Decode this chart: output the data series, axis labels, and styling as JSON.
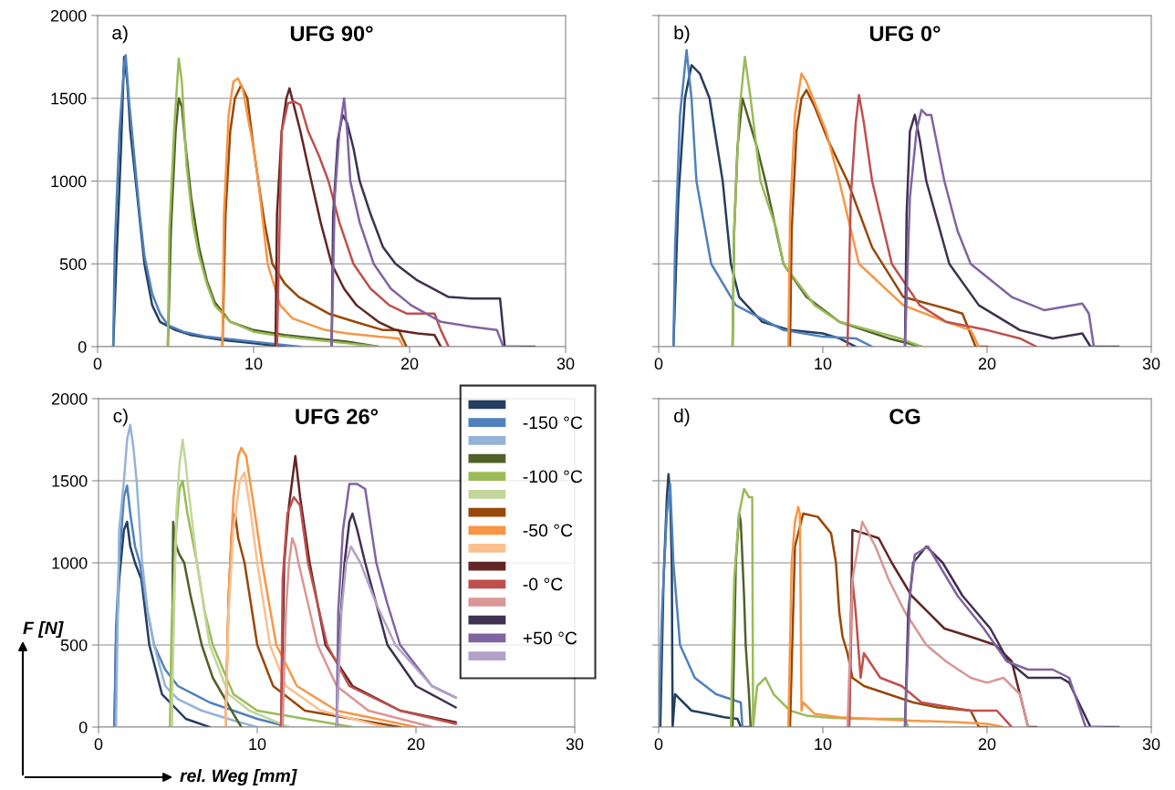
{
  "chart_data": [
    {
      "type": "line",
      "title": "UFG 90°",
      "annotations": [
        "a)"
      ],
      "xlim": [
        0,
        30
      ],
      "xticks": [
        0,
        10,
        20,
        30
      ],
      "ylim": [
        0,
        2000
      ],
      "yticks": [
        0,
        500,
        1000,
        1500,
        2000
      ],
      "grid": "y",
      "series": [
        {
          "color": "#243f60",
          "x": [
            1.0,
            1.2,
            1.5,
            1.7,
            1.9,
            2.1,
            2.5,
            3.0,
            3.5,
            4.0,
            5.0,
            6.0,
            8.0,
            10.0,
            12.0
          ],
          "values": [
            0,
            500,
            1200,
            1750,
            1600,
            1300,
            950,
            500,
            250,
            150,
            100,
            70,
            40,
            20,
            0
          ]
        },
        {
          "color": "#4f81bd",
          "x": [
            1.0,
            1.1,
            1.4,
            1.7,
            1.8,
            2.0,
            2.3,
            2.7,
            3.0,
            3.5,
            4.0,
            4.5,
            5.5,
            7,
            9,
            11,
            13
          ],
          "values": [
            0,
            600,
            1300,
            1700,
            1760,
            1500,
            1200,
            800,
            550,
            320,
            200,
            130,
            90,
            60,
            40,
            20,
            0
          ]
        },
        {
          "color": "#4f6228",
          "x": [
            4.5,
            4.7,
            5.0,
            5.2,
            5.4,
            5.6,
            6.0,
            6.5,
            7.0,
            7.5,
            8.5,
            10,
            12,
            14,
            16,
            18
          ],
          "values": [
            0,
            700,
            1300,
            1500,
            1450,
            1250,
            900,
            600,
            400,
            270,
            150,
            100,
            70,
            50,
            30,
            0
          ]
        },
        {
          "color": "#9bbb59",
          "x": [
            4.5,
            4.6,
            4.9,
            5.2,
            5.4,
            5.7,
            6.1,
            6.5,
            7.0,
            7.5,
            8.5,
            10,
            12,
            14,
            16,
            18
          ],
          "values": [
            0,
            700,
            1300,
            1740,
            1600,
            1100,
            750,
            550,
            380,
            250,
            150,
            90,
            60,
            40,
            20,
            0
          ]
        },
        {
          "color": "#984807",
          "x": [
            8.0,
            8.2,
            8.5,
            8.8,
            9.2,
            9.6,
            10.0,
            10.3,
            10.7,
            11.2,
            12.0,
            12.9,
            14.8,
            16.5,
            18.3,
            19.3,
            19.8
          ],
          "values": [
            0,
            800,
            1300,
            1500,
            1580,
            1500,
            1200,
            1000,
            750,
            500,
            380,
            300,
            200,
            150,
            100,
            100,
            0
          ]
        },
        {
          "color": "#f79646",
          "x": [
            8.0,
            8.1,
            8.4,
            8.7,
            9.0,
            9.3,
            9.7,
            10.0,
            10.3,
            10.9,
            11.7,
            12.5,
            14.6,
            16,
            18,
            19.3,
            19.6
          ],
          "values": [
            0,
            800,
            1400,
            1600,
            1620,
            1560,
            1350,
            1200,
            1000,
            500,
            250,
            170,
            100,
            80,
            60,
            50,
            0
          ]
        },
        {
          "color": "#632523",
          "x": [
            11.4,
            11.5,
            11.8,
            12.1,
            12.3,
            12.6,
            13.0,
            13.7,
            14.3,
            15.0,
            15.8,
            16.6,
            18,
            19.1,
            20.5,
            21.6,
            22.0
          ],
          "values": [
            0,
            800,
            1300,
            1500,
            1560,
            1450,
            1300,
            1000,
            750,
            500,
            350,
            250,
            150,
            100,
            80,
            70,
            0
          ]
        },
        {
          "color": "#c0504d",
          "x": [
            11.5,
            11.8,
            12.2,
            12.6,
            13.0,
            13.5,
            14.2,
            14.8,
            15.5,
            16.4,
            17.5,
            18.7,
            19.8,
            21.0,
            21.6,
            22.0,
            22.5
          ],
          "values": [
            0,
            1300,
            1470,
            1480,
            1460,
            1300,
            1150,
            1000,
            750,
            500,
            350,
            250,
            200,
            200,
            200,
            100,
            0
          ]
        },
        {
          "color": "#3f3151",
          "x": [
            15.0,
            15.1,
            15.4,
            15.7,
            16.0,
            16.4,
            16.8,
            17.5,
            18.3,
            19.1,
            20.5,
            22.5,
            24,
            25.8,
            26.1,
            28
          ],
          "values": [
            0,
            800,
            1250,
            1400,
            1350,
            1200,
            1000,
            800,
            600,
            500,
            400,
            300,
            290,
            290,
            0,
            0
          ]
        },
        {
          "color": "#8064a2",
          "x": [
            15.0,
            15.2,
            15.5,
            15.8,
            16.0,
            16.2,
            16.8,
            17.7,
            18.8,
            20.1,
            22,
            24,
            25.6,
            26.0,
            27
          ],
          "values": [
            0,
            900,
            1300,
            1500,
            1300,
            1000,
            750,
            500,
            350,
            250,
            150,
            120,
            100,
            0,
            0
          ]
        }
      ]
    },
    {
      "type": "line",
      "title": "UFG 0°",
      "annotations": [
        "b)"
      ],
      "xlim": [
        0,
        30
      ],
      "xticks": [
        0,
        10,
        20,
        30
      ],
      "ylim": [
        0,
        2000
      ],
      "yticks": [
        0,
        500,
        1000,
        1500,
        2000
      ],
      "grid": "y",
      "tick_labels": "x",
      "series": [
        {
          "color": "#243f60",
          "x": [
            0.9,
            1.2,
            1.6,
            2.0,
            2.5,
            3.1,
            3.9,
            4.4,
            4.9,
            6.3,
            8,
            10,
            11,
            12
          ],
          "values": [
            0,
            900,
            1500,
            1700,
            1650,
            1500,
            1000,
            500,
            300,
            150,
            100,
            80,
            50,
            0
          ]
        },
        {
          "color": "#4f81bd",
          "x": [
            0.9,
            1.0,
            1.3,
            1.7,
            2.0,
            2.3,
            3.2,
            4.7,
            7.6,
            10,
            12,
            13
          ],
          "values": [
            0,
            600,
            1400,
            1790,
            1500,
            1000,
            500,
            250,
            100,
            60,
            50,
            0
          ]
        },
        {
          "color": "#4f6228",
          "x": [
            4.5,
            4.6,
            4.8,
            5.1,
            5.4,
            6.0,
            6.5,
            7.6,
            9.0,
            11,
            14,
            16
          ],
          "values": [
            0,
            700,
            1200,
            1500,
            1400,
            1200,
            1000,
            500,
            300,
            150,
            50,
            0
          ]
        },
        {
          "color": "#9bbb59",
          "x": [
            4.5,
            4.6,
            4.9,
            5.25,
            5.6,
            6.2,
            7.2,
            7.6,
            9.5,
            11,
            14.7,
            16
          ],
          "values": [
            0,
            700,
            1400,
            1750,
            1500,
            1000,
            700,
            500,
            250,
            150,
            50,
            0
          ]
        },
        {
          "color": "#984807",
          "x": [
            8.0,
            8.1,
            8.4,
            8.7,
            9.0,
            9.5,
            10.3,
            11.5,
            13.0,
            14.9,
            17.5,
            18.5,
            19.3,
            20
          ],
          "values": [
            0,
            700,
            1300,
            1500,
            1550,
            1450,
            1250,
            1000,
            600,
            300,
            230,
            200,
            0,
            0
          ]
        },
        {
          "color": "#f79646",
          "x": [
            7.9,
            8.0,
            8.3,
            8.7,
            9.0,
            9.4,
            10.2,
            11.0,
            12.2,
            14.9,
            17.5,
            19.0,
            19.5
          ],
          "values": [
            0,
            800,
            1400,
            1650,
            1600,
            1500,
            1300,
            1000,
            500,
            250,
            150,
            100,
            0
          ]
        },
        {
          "color": "#c0504d",
          "x": [
            11.5,
            11.7,
            12.0,
            12.2,
            12.5,
            13.0,
            14.2,
            15.9,
            17.5,
            20,
            22,
            23
          ],
          "values": [
            0,
            900,
            1350,
            1520,
            1350,
            1000,
            500,
            250,
            150,
            100,
            50,
            0
          ]
        },
        {
          "color": "#3f3151",
          "x": [
            15.0,
            15.1,
            15.3,
            15.6,
            15.9,
            16.3,
            17.0,
            17.7,
            19.5,
            22,
            24,
            25.8,
            26.3,
            28
          ],
          "values": [
            0,
            800,
            1300,
            1400,
            1250,
            1000,
            750,
            500,
            250,
            100,
            50,
            80,
            0,
            0
          ]
        },
        {
          "color": "#8064a2",
          "x": [
            15.0,
            15.3,
            15.7,
            16.0,
            16.3,
            16.6,
            17.0,
            17.4,
            18.2,
            19.0,
            21.5,
            23.5,
            25.8,
            26.2,
            26.5
          ],
          "values": [
            0,
            900,
            1300,
            1430,
            1400,
            1400,
            1200,
            1000,
            700,
            500,
            300,
            220,
            260,
            200,
            0
          ]
        }
      ]
    },
    {
      "type": "line",
      "title": "UFG 26°",
      "annotations": [
        "c)"
      ],
      "xlabel": "rel. Weg [mm]",
      "ylabel": "F [N]",
      "xlim": [
        0,
        30
      ],
      "xticks": [
        0,
        10,
        20,
        30
      ],
      "ylim": [
        0,
        2000
      ],
      "yticks": [
        0,
        500,
        1000,
        1500,
        2000
      ],
      "grid": "y",
      "legend": "top right",
      "series": [
        {
          "color": "#243f60",
          "x": [
            1.0,
            1.1,
            1.3,
            1.6,
            1.8,
            2.0,
            2.3,
            2.7,
            3.2,
            4.0,
            5.5,
            7.0
          ],
          "values": [
            0,
            500,
            900,
            1200,
            1250,
            1100,
            1000,
            900,
            500,
            200,
            50,
            0
          ]
        },
        {
          "name": "-150 °C",
          "color": "#4f81bd",
          "x": [
            1.0,
            1.1,
            1.3,
            1.6,
            1.8,
            2.0,
            2.3,
            2.6,
            3.0,
            3.5,
            4.2,
            5.0,
            7.0,
            10.0,
            12.0
          ],
          "values": [
            0,
            600,
            1000,
            1400,
            1470,
            1300,
            1100,
            1000,
            750,
            500,
            350,
            250,
            150,
            50,
            0
          ]
        },
        {
          "color": "#95b3d7",
          "x": [
            1.1,
            1.3,
            1.6,
            1.8,
            2.0,
            2.2,
            2.4,
            2.75,
            3.1,
            3.5,
            4.2,
            5.0,
            6.5,
            8.5,
            10.0
          ],
          "values": [
            0,
            1200,
            1500,
            1750,
            1840,
            1700,
            1500,
            1000,
            700,
            500,
            250,
            170,
            100,
            40,
            0
          ]
        },
        {
          "color": "#4f6228",
          "x": [
            4.6,
            4.7,
            4.9,
            5.1,
            5.4,
            5.8,
            6.5,
            7.2,
            7.8,
            8.5,
            9.0
          ],
          "values": [
            0,
            1250,
            1100,
            1050,
            1000,
            800,
            500,
            300,
            200,
            80,
            0
          ]
        },
        {
          "name": "-100 °C",
          "color": "#9bbb59",
          "x": [
            4.5,
            4.6,
            4.9,
            5.1,
            5.3,
            5.6,
            6.2,
            6.7,
            7.2,
            8.5,
            10.0,
            13.0,
            16.0
          ],
          "values": [
            0,
            600,
            1200,
            1450,
            1500,
            1300,
            1000,
            700,
            500,
            200,
            100,
            50,
            0
          ]
        },
        {
          "color": "#c3d69b",
          "x": [
            4.6,
            4.9,
            5.1,
            5.3,
            5.5,
            5.6,
            6.2,
            7.0,
            8.2,
            9.5,
            12.0
          ],
          "values": [
            0,
            1300,
            1600,
            1750,
            1600,
            1500,
            1000,
            500,
            200,
            100,
            0
          ]
        },
        {
          "color": "#984807",
          "x": [
            8.0,
            8.2,
            8.4,
            8.6,
            8.8,
            9.2,
            10.0,
            11.0,
            13.0,
            16.0,
            19.0
          ],
          "values": [
            0,
            800,
            1200,
            1300,
            1150,
            1000,
            500,
            250,
            100,
            50,
            0
          ]
        },
        {
          "name": "-50 °C",
          "color": "#f79646",
          "x": [
            8.0,
            8.2,
            8.5,
            8.8,
            9.0,
            9.3,
            9.7,
            10.3,
            11.2,
            12.5,
            15.0,
            18.0,
            20.0
          ],
          "values": [
            0,
            800,
            1400,
            1650,
            1700,
            1650,
            1400,
            1000,
            500,
            250,
            100,
            40,
            0
          ]
        },
        {
          "color": "#fac090",
          "x": [
            8.0,
            8.2,
            8.5,
            8.9,
            9.2,
            9.6,
            10.0,
            10.8,
            11.8,
            14.0,
            18.0
          ],
          "values": [
            0,
            700,
            1200,
            1500,
            1550,
            1300,
            1000,
            500,
            250,
            100,
            0
          ]
        },
        {
          "color": "#632523",
          "x": [
            11.5,
            11.7,
            12.0,
            12.2,
            12.4,
            12.7,
            13.3,
            14.3,
            16.0,
            19.0,
            22.5
          ],
          "values": [
            0,
            1000,
            1350,
            1500,
            1650,
            1400,
            1000,
            500,
            250,
            100,
            30
          ]
        },
        {
          "name": "-0 °C",
          "color": "#c0504d",
          "x": [
            11.5,
            11.6,
            11.9,
            12.3,
            12.7,
            13.2,
            13.8,
            14.4,
            15.8,
            19.0,
            22.5
          ],
          "values": [
            0,
            900,
            1300,
            1400,
            1350,
            1000,
            750,
            500,
            250,
            100,
            20
          ]
        },
        {
          "color": "#d99694",
          "x": [
            11.6,
            11.8,
            12.0,
            12.2,
            12.4,
            12.6,
            13.2,
            13.8,
            15.0,
            17.0,
            21.0
          ],
          "values": [
            0,
            700,
            1000,
            1150,
            1100,
            1000,
            750,
            500,
            250,
            100,
            0
          ]
        },
        {
          "color": "#3f3151",
          "x": [
            15.0,
            15.2,
            15.5,
            15.8,
            16.0,
            16.3,
            16.8,
            17.5,
            18.2,
            20.0,
            22.5
          ],
          "values": [
            0,
            600,
            1000,
            1250,
            1300,
            1200,
            1000,
            750,
            500,
            250,
            120
          ]
        },
        {
          "name": "+50 °C",
          "color": "#8064a2",
          "x": [
            15.0,
            15.1,
            15.4,
            15.8,
            16.3,
            16.8,
            17.5,
            18.2,
            19.0,
            21.0,
            22.5
          ],
          "values": [
            0,
            700,
            1200,
            1480,
            1480,
            1450,
            1000,
            750,
            500,
            250,
            180
          ]
        },
        {
          "color": "#b3a2c7",
          "x": [
            15.0,
            15.3,
            15.6,
            15.9,
            16.2,
            16.5,
            17.5,
            18.7,
            21.0,
            22.5
          ],
          "values": [
            0,
            700,
            1000,
            1100,
            1050,
            1000,
            750,
            500,
            250,
            180
          ]
        }
      ]
    },
    {
      "type": "line",
      "title": "CG",
      "annotations": [
        "d)"
      ],
      "xlim": [
        0,
        30
      ],
      "xticks": [
        0,
        10,
        20,
        30
      ],
      "ylim": [
        0,
        2000
      ],
      "yticks": [
        0,
        500,
        1000,
        1500,
        2000
      ],
      "grid": "y",
      "tick_labels": "x",
      "series": [
        {
          "color": "#243f60",
          "x": [
            0.1,
            0.3,
            0.5,
            0.6,
            0.7,
            0.8,
            0.85,
            1.0,
            1.5,
            2,
            3,
            4,
            4.8,
            5.0,
            5.5
          ],
          "values": [
            0,
            900,
            1400,
            1540,
            1400,
            1000,
            0,
            200,
            150,
            100,
            80,
            60,
            50,
            0,
            0
          ]
        },
        {
          "color": "#4f81bd",
          "x": [
            0.0,
            0.2,
            0.5,
            0.7,
            0.9,
            1.3,
            2.2,
            3.5,
            5.0,
            5.1
          ],
          "values": [
            0,
            700,
            1300,
            1480,
            1000,
            500,
            300,
            200,
            150,
            0
          ]
        },
        {
          "color": "#4f6228",
          "x": [
            4.5,
            4.7,
            4.9,
            5.0,
            5.2,
            5.3,
            5.5,
            5.6
          ],
          "values": [
            0,
            1000,
            1300,
            1250,
            800,
            500,
            200,
            0
          ]
        },
        {
          "color": "#9bbb59",
          "x": [
            4.4,
            4.6,
            4.9,
            5.2,
            5.5,
            5.7,
            5.75,
            6.0,
            6.5,
            7,
            8,
            9,
            10,
            12,
            14,
            15.0,
            15.2
          ],
          "values": [
            0,
            900,
            1300,
            1450,
            1400,
            1400,
            0,
            250,
            300,
            200,
            100,
            70,
            60,
            50,
            50,
            50,
            0
          ]
        },
        {
          "color": "#984807",
          "x": [
            8.0,
            8.3,
            8.8,
            9.7,
            10.5,
            10.8,
            11.0,
            11.2,
            11.5,
            11.8,
            12.5,
            14,
            15.5,
            17,
            19.0,
            19.5,
            20
          ],
          "values": [
            0,
            1100,
            1300,
            1280,
            1180,
            1000,
            700,
            550,
            450,
            300,
            250,
            200,
            150,
            120,
            100,
            0,
            0
          ]
        },
        {
          "color": "#f79646",
          "x": [
            7.9,
            8.1,
            8.3,
            8.5,
            8.6,
            8.7,
            8.8,
            9.5,
            11,
            13,
            15,
            18,
            20,
            21
          ],
          "values": [
            0,
            1000,
            1250,
            1340,
            1300,
            100,
            150,
            80,
            60,
            50,
            40,
            30,
            20,
            0
          ]
        },
        {
          "color": "#632523",
          "x": [
            11.6,
            11.8,
            12.5,
            13.4,
            14.2,
            15.4,
            17.4,
            19.0,
            20.5,
            21.5,
            22.5,
            23
          ],
          "values": [
            0,
            1200,
            1180,
            1150,
            1000,
            800,
            600,
            550,
            500,
            400,
            0,
            0
          ]
        },
        {
          "color": "#c0504d",
          "x": [
            11.6,
            11.8,
            12.0,
            12.3,
            12.5,
            13.5,
            14.8,
            16,
            19,
            20.6,
            21.5
          ],
          "values": [
            0,
            900,
            700,
            300,
            450,
            300,
            250,
            150,
            100,
            100,
            0
          ]
        },
        {
          "color": "#d99694",
          "x": [
            11.5,
            11.8,
            12.4,
            13.2,
            14.0,
            15.0,
            16.3,
            17.5,
            19.0,
            20,
            21,
            22.0,
            22.5
          ],
          "values": [
            0,
            900,
            1250,
            1100,
            900,
            700,
            500,
            400,
            300,
            270,
            300,
            200,
            0
          ]
        },
        {
          "color": "#3f3151",
          "x": [
            15.0,
            15.2,
            15.5,
            16.3,
            17.3,
            18.5,
            20.2,
            21.3,
            22.5,
            24.5,
            25,
            26.3,
            28
          ],
          "values": [
            0,
            700,
            1000,
            1100,
            1000,
            800,
            600,
            400,
            300,
            300,
            270,
            0,
            0
          ]
        },
        {
          "color": "#8064a2",
          "x": [
            15.0,
            15.3,
            15.6,
            16.4,
            17.0,
            18.2,
            19.8,
            21.2,
            22.5,
            24,
            25,
            26,
            27
          ],
          "values": [
            0,
            800,
            1050,
            1100,
            1000,
            800,
            600,
            400,
            350,
            350,
            300,
            0,
            0
          ]
        }
      ]
    }
  ]
}
